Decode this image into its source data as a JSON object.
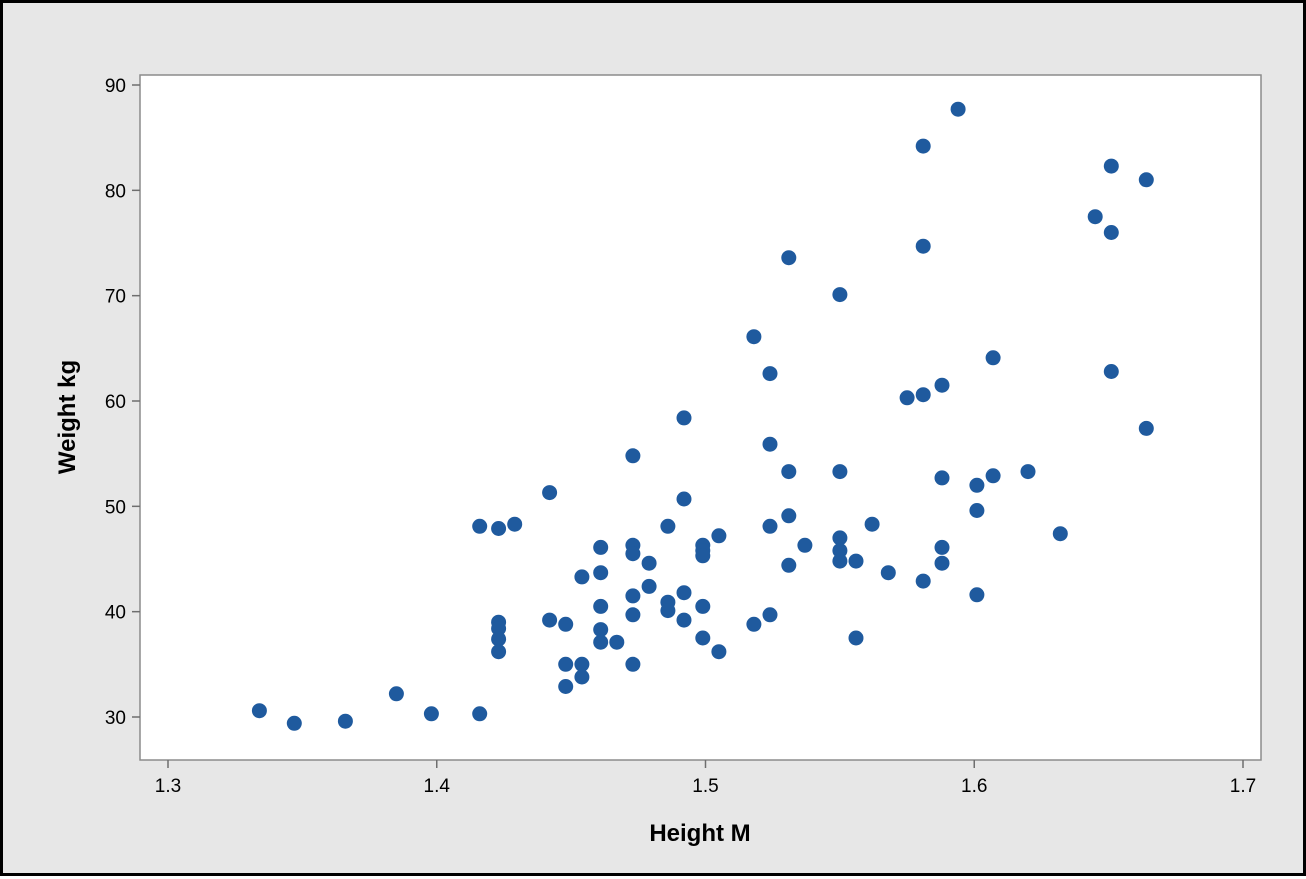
{
  "chart_data": {
    "type": "scatter",
    "title": "",
    "xlabel": "Height M",
    "ylabel": "Weight kg",
    "xlim": [
      1.3,
      1.7
    ],
    "ylim": [
      30,
      90
    ],
    "x_ticks": [
      "1.3",
      "1.4",
      "1.5",
      "1.6",
      "1.7"
    ],
    "y_ticks": [
      "30",
      "40",
      "50",
      "60",
      "70",
      "80",
      "90"
    ],
    "grid": false,
    "legend": "none",
    "marker_color": "#1f5a9e",
    "panel_color": "#ffffff",
    "background_color": "#e7e7e7",
    "points": [
      [
        1.334,
        30.6
      ],
      [
        1.347,
        29.4
      ],
      [
        1.366,
        29.6
      ],
      [
        1.385,
        32.2
      ],
      [
        1.398,
        30.3
      ],
      [
        1.416,
        30.3
      ],
      [
        1.416,
        48.1
      ],
      [
        1.423,
        47.9
      ],
      [
        1.429,
        48.3
      ],
      [
        1.423,
        39.0
      ],
      [
        1.423,
        38.4
      ],
      [
        1.423,
        37.4
      ],
      [
        1.423,
        36.2
      ],
      [
        1.442,
        51.3
      ],
      [
        1.442,
        39.2
      ],
      [
        1.448,
        38.8
      ],
      [
        1.448,
        35.0
      ],
      [
        1.448,
        32.9
      ],
      [
        1.454,
        43.3
      ],
      [
        1.454,
        35.0
      ],
      [
        1.454,
        33.8
      ],
      [
        1.461,
        46.1
      ],
      [
        1.461,
        43.7
      ],
      [
        1.461,
        40.5
      ],
      [
        1.461,
        38.3
      ],
      [
        1.461,
        37.1
      ],
      [
        1.467,
        37.1
      ],
      [
        1.473,
        54.8
      ],
      [
        1.473,
        46.3
      ],
      [
        1.473,
        45.5
      ],
      [
        1.473,
        41.5
      ],
      [
        1.473,
        39.7
      ],
      [
        1.473,
        35.0
      ],
      [
        1.479,
        44.6
      ],
      [
        1.479,
        42.4
      ],
      [
        1.486,
        48.1
      ],
      [
        1.486,
        40.9
      ],
      [
        1.486,
        40.1
      ],
      [
        1.492,
        58.4
      ],
      [
        1.492,
        50.7
      ],
      [
        1.492,
        41.8
      ],
      [
        1.492,
        39.2
      ],
      [
        1.499,
        46.3
      ],
      [
        1.499,
        45.8
      ],
      [
        1.499,
        45.3
      ],
      [
        1.499,
        40.5
      ],
      [
        1.499,
        37.5
      ],
      [
        1.505,
        47.2
      ],
      [
        1.505,
        36.2
      ],
      [
        1.518,
        66.1
      ],
      [
        1.518,
        38.8
      ],
      [
        1.524,
        62.6
      ],
      [
        1.524,
        55.9
      ],
      [
        1.524,
        48.1
      ],
      [
        1.524,
        39.7
      ],
      [
        1.531,
        73.6
      ],
      [
        1.531,
        53.3
      ],
      [
        1.531,
        49.1
      ],
      [
        1.531,
        44.4
      ],
      [
        1.537,
        46.3
      ],
      [
        1.55,
        70.1
      ],
      [
        1.55,
        53.3
      ],
      [
        1.55,
        47.0
      ],
      [
        1.55,
        45.8
      ],
      [
        1.55,
        44.8
      ],
      [
        1.556,
        44.8
      ],
      [
        1.556,
        37.5
      ],
      [
        1.562,
        48.3
      ],
      [
        1.568,
        43.7
      ],
      [
        1.575,
        60.3
      ],
      [
        1.581,
        84.2
      ],
      [
        1.581,
        74.7
      ],
      [
        1.581,
        60.6
      ],
      [
        1.581,
        42.9
      ],
      [
        1.594,
        87.7
      ],
      [
        1.588,
        61.5
      ],
      [
        1.588,
        52.7
      ],
      [
        1.588,
        46.1
      ],
      [
        1.588,
        44.6
      ],
      [
        1.601,
        52.0
      ],
      [
        1.601,
        49.6
      ],
      [
        1.601,
        41.6
      ],
      [
        1.607,
        64.1
      ],
      [
        1.607,
        52.9
      ],
      [
        1.62,
        53.3
      ],
      [
        1.632,
        47.4
      ],
      [
        1.645,
        77.5
      ],
      [
        1.651,
        82.3
      ],
      [
        1.651,
        76.0
      ],
      [
        1.651,
        62.8
      ],
      [
        1.664,
        81.0
      ],
      [
        1.664,
        57.4
      ]
    ]
  }
}
